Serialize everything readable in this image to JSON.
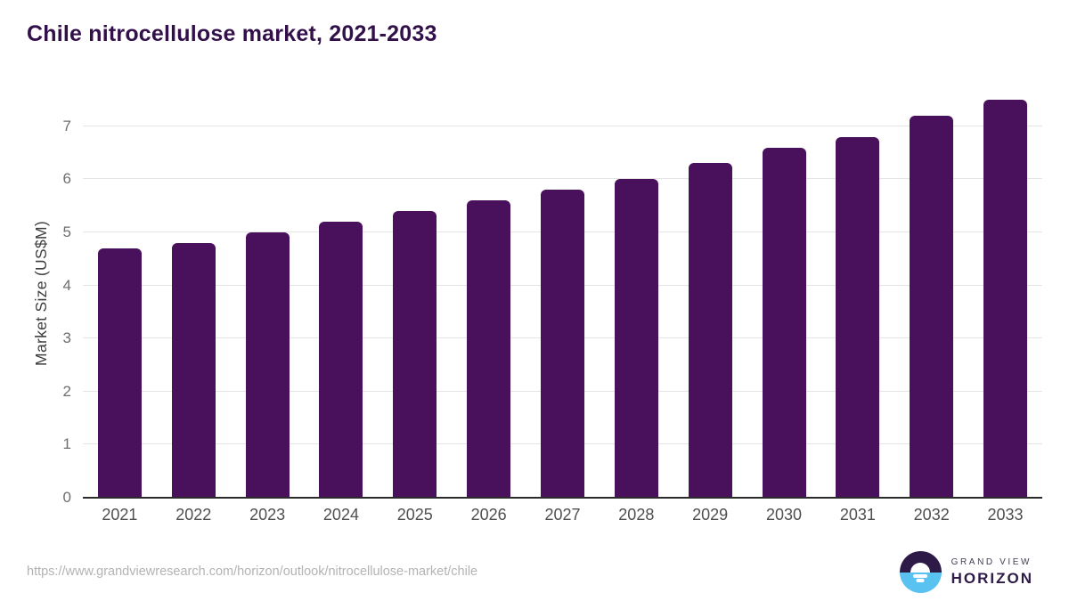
{
  "chart_data": {
    "type": "bar",
    "title": "Chile nitrocellulose market, 2021-2033",
    "categories": [
      "2021",
      "2022",
      "2023",
      "2024",
      "2025",
      "2026",
      "2027",
      "2028",
      "2029",
      "2030",
      "2031",
      "2032",
      "2033"
    ],
    "values": [
      4.7,
      4.8,
      5.0,
      5.2,
      5.4,
      5.6,
      5.8,
      6.0,
      6.3,
      6.6,
      6.8,
      7.2,
      7.5
    ],
    "xlabel": "",
    "ylabel": "Market Size (US$M)",
    "ylim": [
      0,
      7.7
    ],
    "yticks": [
      0,
      1,
      2,
      3,
      4,
      5,
      6,
      7
    ],
    "grid": true,
    "legend_position": "none",
    "bar_color": "#49105C"
  },
  "footer": {
    "source_url": "https://www.grandviewresearch.com/horizon/outlook/nitrocellulose-market/chile",
    "logo": {
      "line1": "GRAND VIEW",
      "line2": "HORIZON"
    }
  },
  "colors": {
    "title_text": "#321049",
    "bar": "#49105C",
    "axis_line": "#2B2B2B",
    "gridline": "#E4E4E4",
    "y_tick_text": "#6E6E6E",
    "x_tick_text": "#4F4F4F",
    "url_text": "#B3B3B3",
    "logo_dark": "#2E1A47",
    "logo_blue": "#59C2F0"
  }
}
